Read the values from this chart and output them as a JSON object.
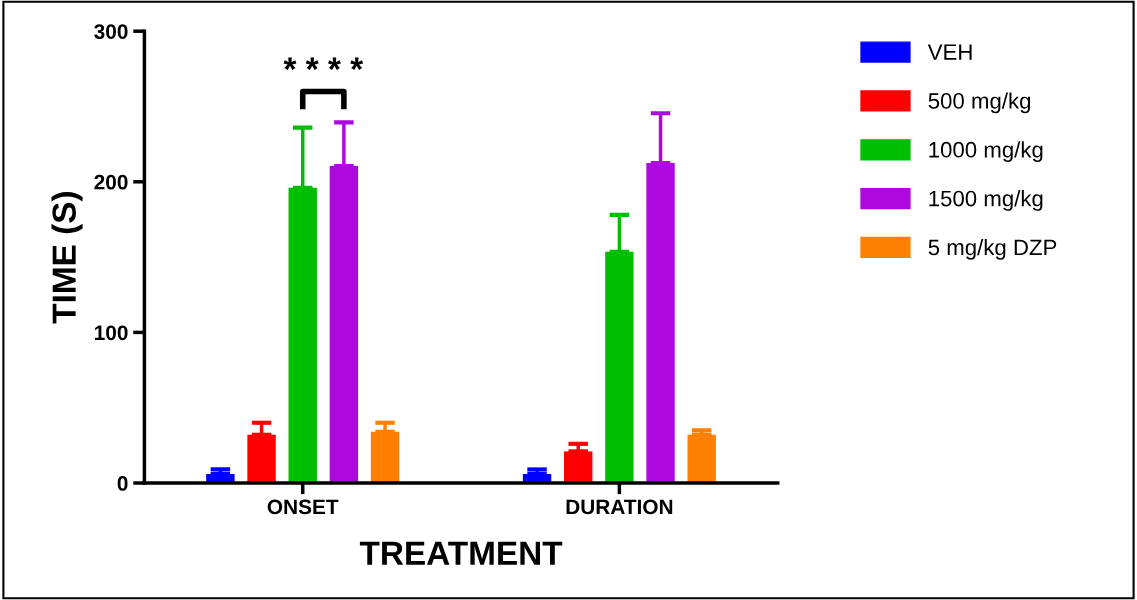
{
  "chart_data": {
    "type": "bar",
    "xlabel": "TREATMENT",
    "ylabel": "TIME (S)",
    "categories": [
      "ONSET",
      "DURATION"
    ],
    "series": [
      {
        "name": "VEH",
        "color": "#0000ff",
        "values": [
          6,
          6
        ],
        "errors": [
          [
            6,
            9
          ],
          [
            6,
            9
          ]
        ]
      },
      {
        "name": "500 mg/kg",
        "color": "#ff0000",
        "values": [
          32,
          21
        ],
        "errors": [
          [
            32,
            40
          ],
          [
            21,
            26
          ]
        ]
      },
      {
        "name": "1000 mg/kg",
        "color": "#00bf00",
        "values": [
          196,
          153.5
        ],
        "errors": [
          [
            196,
            236
          ],
          [
            153.5,
            178
          ]
        ]
      },
      {
        "name": "1500 mg/kg",
        "color": "#ad09df",
        "values": [
          210.5,
          212.5
        ],
        "errors": [
          [
            210.5,
            239.5
          ],
          [
            212.5,
            245.5
          ]
        ]
      },
      {
        "name": "5 mg/kg DZP",
        "color": "#ff8000",
        "values": [
          34,
          32
        ],
        "errors": [
          [
            34,
            40
          ],
          [
            32,
            35
          ]
        ]
      }
    ],
    "ylim": [
      0,
      300
    ],
    "yticks": [
      0,
      100,
      200,
      300
    ],
    "grid": false,
    "legend": "top right",
    "annotations": [
      "* * * *"
    ]
  }
}
